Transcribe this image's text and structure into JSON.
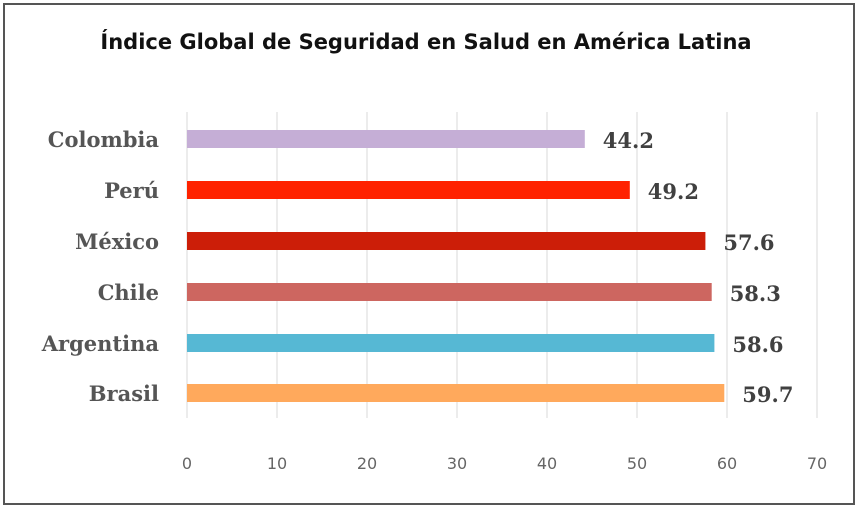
{
  "chart_data": {
    "type": "bar",
    "orientation": "horizontal",
    "title": "Índice Global de Seguridad en Salud en América Latina",
    "categories": [
      "Colombia",
      "Perú",
      "México",
      "Chile",
      "Argentina",
      "Brasil"
    ],
    "values": [
      44.2,
      49.2,
      57.6,
      58.3,
      58.6,
      59.7
    ],
    "value_labels": [
      "44.2",
      "49.2",
      "57.6",
      "58.3",
      "58.6",
      "59.7"
    ],
    "colors": [
      "#c5aed6",
      "#ff2200",
      "#cc1e08",
      "#cd6660",
      "#56b8d4",
      "#ffa95c"
    ],
    "xlim": [
      0,
      70
    ],
    "xticks": [
      "0",
      "10",
      "20",
      "30",
      "40",
      "50",
      "60",
      "70"
    ],
    "grid": true,
    "legend": "none"
  }
}
